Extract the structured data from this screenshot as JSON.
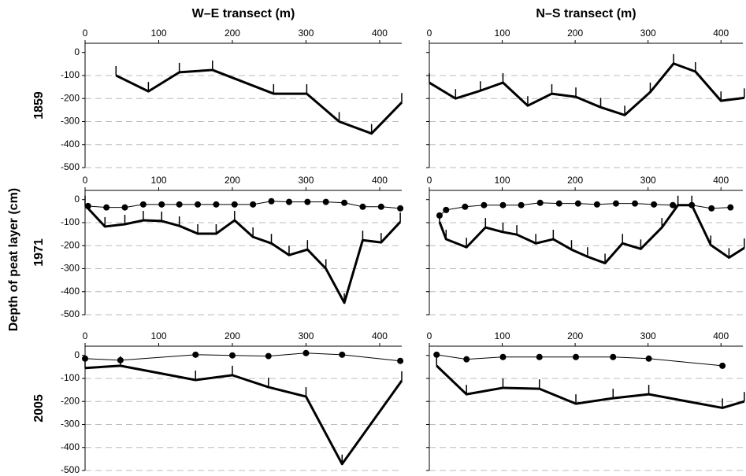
{
  "column_titles": [
    "W–E transect (m)",
    "N–S transect (m)"
  ],
  "row_labels": [
    "1859",
    "1971",
    "2005"
  ],
  "ylabel": "Depth of peat layer (cm)",
  "chart_data": [
    {
      "type": "line",
      "xlim": [
        0,
        430
      ],
      "ylim": [
        -500,
        40
      ],
      "xticks": [
        0,
        100,
        200,
        300,
        400
      ],
      "yticks": [
        0,
        -100,
        -200,
        -300,
        -400,
        -500
      ],
      "ytick_labels": true,
      "grid": true,
      "series": [
        {
          "color": "#000000",
          "style": "thick",
          "x": [
            42,
            86,
            128,
            173,
            256,
            301,
            345,
            389,
            430
          ],
          "values": [
            -100,
            -169,
            -86,
            -76,
            -179,
            -179,
            -300,
            -352,
            -217
          ]
        }
      ]
    },
    {
      "type": "line",
      "xlim": [
        0,
        430
      ],
      "ylim": [
        -500,
        40
      ],
      "xticks": [
        0,
        100,
        200,
        300,
        400
      ],
      "yticks": [
        0,
        -100,
        -200,
        -300,
        -400,
        -500
      ],
      "ytick_labels": false,
      "grid": true,
      "series": [
        {
          "color": "#000000",
          "style": "thick",
          "x": [
            0,
            36,
            70,
            101,
            135,
            168,
            201,
            235,
            268,
            303,
            335,
            365,
            400,
            432
          ],
          "values": [
            -131,
            -200,
            -166,
            -131,
            -231,
            -179,
            -193,
            -238,
            -272,
            -172,
            -48,
            -83,
            -210,
            -197
          ]
        }
      ]
    },
    {
      "type": "line",
      "xlim": [
        0,
        430
      ],
      "ylim": [
        -500,
        40
      ],
      "xticks": [
        0,
        100,
        200,
        300,
        400
      ],
      "yticks": [
        0,
        -100,
        -200,
        -300,
        -400,
        -500
      ],
      "ytick_labels": true,
      "grid": true,
      "series": [
        {
          "color": "#000000",
          "style": "thin",
          "x": [
            4,
            29,
            54,
            79,
            104,
            128,
            153,
            178,
            203,
            228,
            253,
            277,
            302,
            327,
            352,
            377,
            402,
            428
          ],
          "values": [
            -28,
            -34,
            -34,
            -21,
            -21,
            -21,
            -21,
            -21,
            -21,
            -21,
            -7,
            -10,
            -10,
            -10,
            -14,
            -31,
            -31,
            -38
          ]
        },
        {
          "color": "#000000",
          "style": "thick",
          "x": [
            0,
            27,
            54,
            79,
            104,
            128,
            153,
            178,
            203,
            228,
            253,
            277,
            302,
            327,
            352,
            377,
            402,
            428
          ],
          "values": [
            -24,
            -117,
            -107,
            -90,
            -93,
            -114,
            -148,
            -148,
            -90,
            -162,
            -190,
            -241,
            -217,
            -300,
            -448,
            -176,
            -186,
            -97
          ]
        }
      ]
    },
    {
      "type": "line",
      "xlim": [
        0,
        430
      ],
      "ylim": [
        -500,
        40
      ],
      "xticks": [
        0,
        100,
        200,
        300,
        400
      ],
      "yticks": [
        0,
        -100,
        -200,
        -300,
        -400,
        -500
      ],
      "ytick_labels": false,
      "grid": true,
      "series": [
        {
          "color": "#000000",
          "style": "thin",
          "x": [
            14,
            23,
            49,
            75,
            101,
            126,
            152,
            178,
            204,
            230,
            256,
            282,
            308,
            334,
            360,
            387,
            413
          ],
          "values": [
            -69,
            -45,
            -31,
            -24,
            -24,
            -24,
            -14,
            -17,
            -17,
            -21,
            -17,
            -17,
            -21,
            -24,
            -24,
            -38,
            -34
          ]
        },
        {
          "color": "#000000",
          "style": "thick",
          "x": [
            14,
            23,
            51,
            77,
            101,
            120,
            146,
            170,
            195,
            217,
            241,
            265,
            290,
            319,
            341,
            360,
            386,
            411,
            432
          ],
          "values": [
            -97,
            -172,
            -207,
            -121,
            -141,
            -152,
            -190,
            -172,
            -217,
            -248,
            -276,
            -190,
            -214,
            -121,
            -24,
            -24,
            -197,
            -252,
            -210
          ]
        }
      ]
    },
    {
      "type": "line",
      "xlim": [
        0,
        430
      ],
      "ylim": [
        -500,
        40
      ],
      "xticks": [
        0,
        100,
        200,
        300,
        400
      ],
      "yticks": [
        0,
        -100,
        -200,
        -300,
        -400,
        -500
      ],
      "ytick_labels": true,
      "grid": true,
      "series": [
        {
          "color": "#000000",
          "style": "thin",
          "x": [
            0,
            48,
            150,
            200,
            249,
            300,
            349,
            428
          ],
          "values": [
            -14,
            -21,
            3,
            0,
            -3,
            10,
            3,
            -24
          ]
        },
        {
          "color": "#000000",
          "style": "thick",
          "x": [
            0,
            48,
            150,
            200,
            249,
            300,
            349,
            430
          ],
          "values": [
            -55,
            -45,
            -107,
            -86,
            -138,
            -179,
            -472,
            -110
          ]
        }
      ]
    },
    {
      "type": "line",
      "xlim": [
        0,
        430
      ],
      "ylim": [
        -500,
        40
      ],
      "xticks": [
        0,
        100,
        200,
        300,
        400
      ],
      "yticks": [
        0,
        -100,
        -200,
        -300,
        -400,
        -500
      ],
      "ytick_labels": false,
      "grid": true,
      "series": [
        {
          "color": "#000000",
          "style": "thin",
          "x": [
            10,
            51,
            101,
            151,
            201,
            252,
            301,
            402
          ],
          "values": [
            3,
            -17,
            -7,
            -7,
            -7,
            -7,
            -14,
            -45
          ]
        },
        {
          "color": "#000000",
          "style": "thick",
          "x": [
            10,
            51,
            101,
            151,
            201,
            252,
            301,
            402,
            432
          ],
          "values": [
            -45,
            -169,
            -141,
            -145,
            -210,
            -186,
            -169,
            -228,
            -200
          ]
        }
      ]
    }
  ]
}
